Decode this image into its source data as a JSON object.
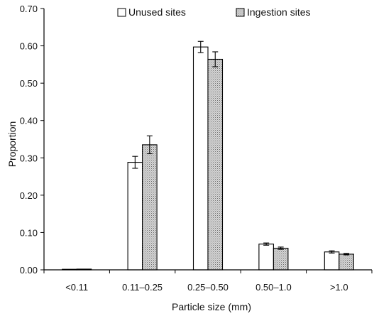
{
  "chart_data": {
    "type": "bar",
    "title": "",
    "xlabel": "Particle size (mm)",
    "ylabel": "Proportion",
    "categories": [
      "<0.11",
      "0.11–0.25",
      "0.25–0.50",
      "0.50–1.0",
      ">1.0"
    ],
    "series": [
      {
        "name": "Unused sites",
        "fill": "#ffffff",
        "values": [
          0.001,
          0.288,
          0.597,
          0.069,
          0.048
        ],
        "error": [
          0.0,
          0.016,
          0.015,
          0.003,
          0.003
        ]
      },
      {
        "name": "Ingestion sites",
        "fill": "#c8c8c8",
        "pattern": "stipple",
        "values": [
          0.002,
          0.335,
          0.564,
          0.058,
          0.042
        ],
        "error": [
          0.0,
          0.024,
          0.02,
          0.003,
          0.002
        ]
      }
    ],
    "ylim": [
      0,
      0.7
    ],
    "yticks": [
      0.0,
      0.1,
      0.2,
      0.3,
      0.4,
      0.5,
      0.6,
      0.7
    ],
    "ytick_labels": [
      "0.00",
      "0.10",
      "0.20",
      "0.30",
      "0.40",
      "0.50",
      "0.60",
      "0.70"
    ],
    "grid": false,
    "legend_position": "top"
  }
}
